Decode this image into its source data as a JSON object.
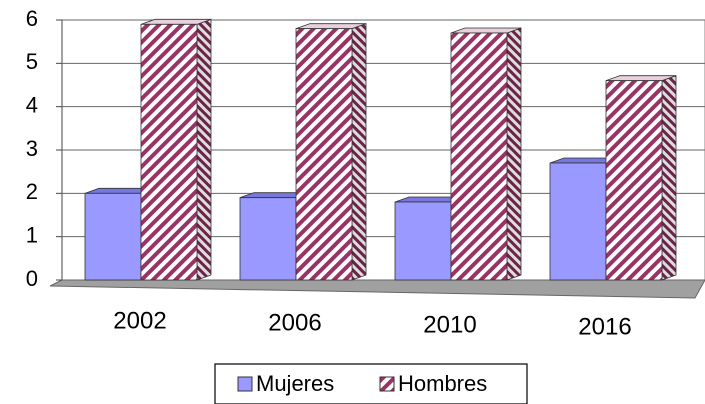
{
  "chart_data": {
    "type": "bar3d",
    "categories": [
      "2002",
      "2006",
      "2010",
      "2016"
    ],
    "series": [
      {
        "name": "Mujeres",
        "color": "#9999ff",
        "values": [
          2.0,
          1.9,
          1.8,
          2.7
        ]
      },
      {
        "name": "Hombres",
        "color": "#993366",
        "values": [
          5.9,
          5.8,
          5.7,
          4.6
        ]
      }
    ],
    "ylim": [
      0,
      6
    ],
    "yticks": [
      0,
      1,
      2,
      3,
      4,
      5,
      6
    ],
    "grid": true
  }
}
